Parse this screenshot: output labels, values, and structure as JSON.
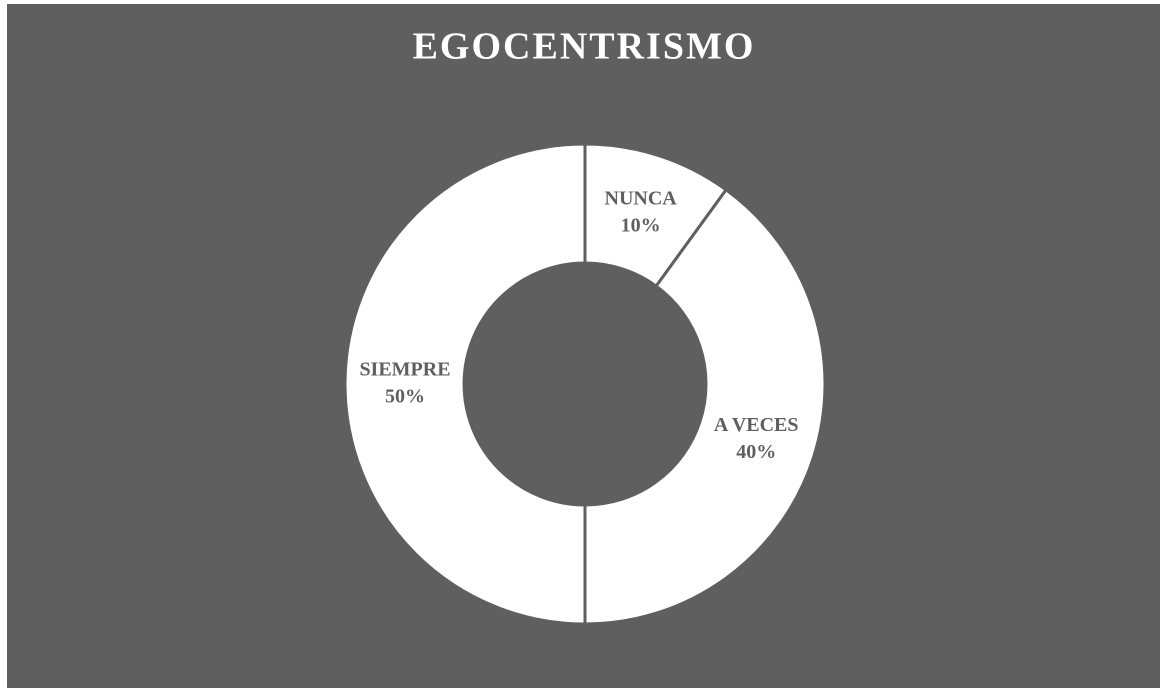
{
  "chart_data": {
    "type": "donut",
    "title": "EGOCENTRISMO",
    "categories": [
      "NUNCA",
      "A VECES",
      "SIEMPRE"
    ],
    "values": [
      10,
      40,
      50
    ],
    "value_labels": [
      "10%",
      "40%",
      "50%"
    ],
    "color": "#ffffff",
    "background": "#5f5f5f"
  }
}
